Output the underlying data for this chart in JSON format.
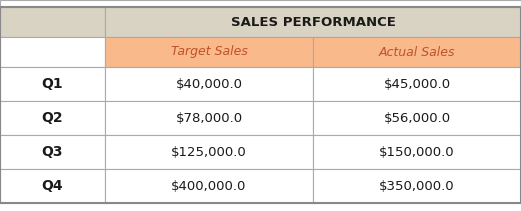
{
  "title": "SALES PERFORMANCE",
  "col_headers": [
    "Target Sales",
    "Actual Sales"
  ],
  "row_headers": [
    "Q1",
    "Q2",
    "Q3",
    "Q4"
  ],
  "cell_data": [
    [
      "$40,000.0",
      "$45,000.0"
    ],
    [
      "$78,000.0",
      "$56,000.0"
    ],
    [
      "$125,000.0",
      "$150,000.0"
    ],
    [
      "$400,000.0",
      "$350,000.0"
    ]
  ],
  "title_bg": "#d9d3c3",
  "col_header_bg": "#f9b98b",
  "row_header_bg": "#ffffff",
  "data_cell_bg": "#ffffff",
  "grid_color": "#aaaaaa",
  "outer_border_color": "#888888",
  "title_text_color": "#1a1a1a",
  "col_header_text_color": "#c0522a",
  "row_header_text_color": "#1a1a1a",
  "data_text_color": "#1a1a1a",
  "figsize": [
    5.21,
    2.11
  ],
  "dpi": 100
}
